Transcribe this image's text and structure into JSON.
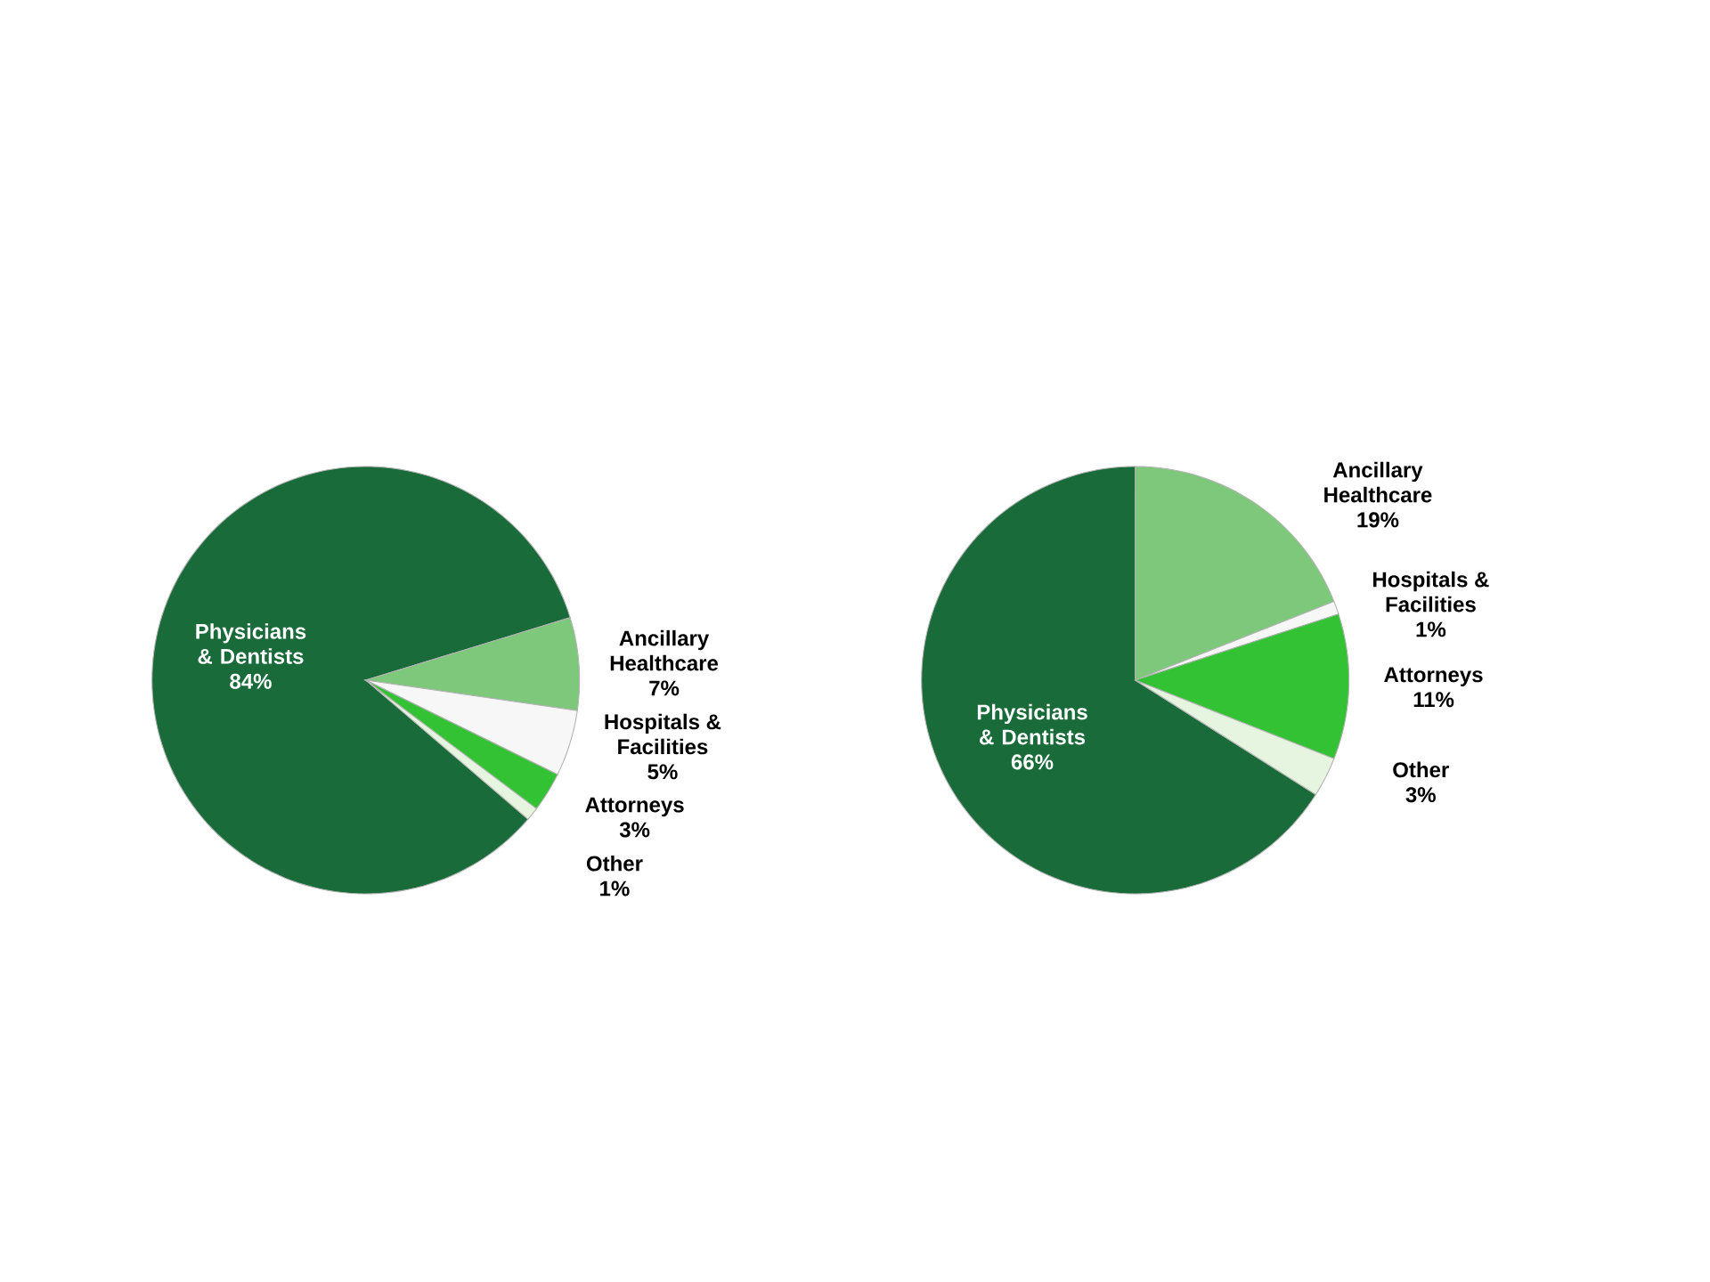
{
  "chart_data": [
    {
      "type": "pie",
      "categories": [
        "Physicians & Dentists",
        "Ancillary Healthcare",
        "Hospitals & Facilities",
        "Attorneys",
        "Other"
      ],
      "values": [
        84,
        7,
        5,
        3,
        1
      ],
      "value_labels": [
        "84%",
        "7%",
        "5%",
        "3%",
        "1%"
      ],
      "colors": [
        "#1a6b3a",
        "#7dc87a",
        "#f7f7f7",
        "#33c233",
        "#e6f5e0"
      ]
    },
    {
      "type": "pie",
      "categories": [
        "Physicians & Dentists",
        "Ancillary Healthcare",
        "Hospitals & Facilities",
        "Attorneys",
        "Other"
      ],
      "values": [
        66,
        19,
        1,
        11,
        3
      ],
      "value_labels": [
        "66%",
        "19%",
        "1%",
        "11%",
        "3%"
      ],
      "colors": [
        "#1a6b3a",
        "#7dc87a",
        "#f7f7f7",
        "#33c233",
        "#e6f5e0"
      ]
    }
  ]
}
